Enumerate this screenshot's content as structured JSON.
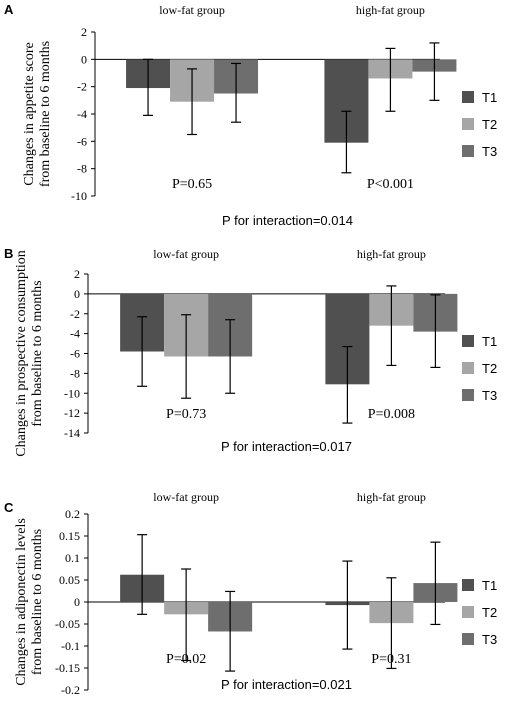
{
  "colors": {
    "T1": "#505050",
    "T2": "#a6a6a6",
    "T3": "#6e6e6e"
  },
  "chart_data": [
    {
      "panel": "A",
      "type": "bar",
      "ylabel_lines": [
        "Changes in appetite score",
        "from baseline to 6 months"
      ],
      "groups": [
        "low-fat group",
        "high-fat group"
      ],
      "ylim": [
        -10,
        2
      ],
      "yticks": [
        2,
        0,
        -2,
        -4,
        -6,
        -8,
        -10
      ],
      "ytick_labels": [
        "2",
        "0",
        "-2",
        "-4",
        "-6",
        "-8",
        "-10"
      ],
      "series": [
        {
          "name": "T1",
          "values": [
            -2.1,
            -6.1
          ],
          "err_low": [
            -4.1,
            -8.3
          ],
          "err_high": [
            0,
            -3.8
          ]
        },
        {
          "name": "T2",
          "values": [
            -3.1,
            -1.4
          ],
          "err_low": [
            -5.5,
            -3.8
          ],
          "err_high": [
            -0.7,
            0.8
          ]
        },
        {
          "name": "T3",
          "values": [
            -2.5,
            -0.9
          ],
          "err_low": [
            -4.6,
            -3.0
          ],
          "err_high": [
            -0.3,
            1.2
          ]
        }
      ],
      "p_values": [
        "P=0.65",
        "P<0.001"
      ],
      "interaction": "P for interaction=0.014"
    },
    {
      "panel": "B",
      "type": "bar",
      "ylabel_lines": [
        "Changes in prospective consumption",
        "from baseline to 6 months"
      ],
      "groups": [
        "low-fat group",
        "high-fat group"
      ],
      "ylim": [
        -14,
        2
      ],
      "yticks": [
        2,
        0,
        -2,
        -4,
        -6,
        -8,
        -10,
        -12,
        -14
      ],
      "ytick_labels": [
        "2",
        "0",
        "-2",
        "-4",
        "-6",
        "-8",
        "-10",
        "-12",
        "-14"
      ],
      "series": [
        {
          "name": "T1",
          "values": [
            -5.8,
            -9.1
          ],
          "err_low": [
            -9.3,
            -13.0
          ],
          "err_high": [
            -2.3,
            -5.3
          ]
        },
        {
          "name": "T2",
          "values": [
            -6.3,
            -3.2
          ],
          "err_low": [
            -10.5,
            -7.2
          ],
          "err_high": [
            -2.1,
            0.8
          ]
        },
        {
          "name": "T3",
          "values": [
            -6.3,
            -3.8
          ],
          "err_low": [
            -10.0,
            -7.4
          ],
          "err_high": [
            -2.6,
            -0.1
          ]
        }
      ],
      "p_values": [
        "P=0.73",
        "P=0.008"
      ],
      "interaction": "P for interaction=0.017"
    },
    {
      "panel": "C",
      "type": "bar",
      "ylabel_lines": [
        "Changes in adiponectin levels",
        "from baseline to 6 months"
      ],
      "groups": [
        "low-fat group",
        "high-fat group"
      ],
      "ylim": [
        -0.2,
        0.2
      ],
      "yticks": [
        0.2,
        0.15,
        0.1,
        0.05,
        0,
        -0.05,
        -0.1,
        -0.15,
        -0.2
      ],
      "ytick_labels": [
        "0.2",
        "0.15",
        "0.1",
        "0.05",
        "0",
        "-0.05",
        "-0.1",
        "-0.15",
        "-0.2"
      ],
      "series": [
        {
          "name": "T1",
          "values": [
            0.062,
            -0.007
          ],
          "err_low": [
            -0.028,
            -0.107
          ],
          "err_high": [
            0.153,
            0.093
          ]
        },
        {
          "name": "T2",
          "values": [
            -0.028,
            -0.048
          ],
          "err_low": [
            -0.133,
            -0.151
          ],
          "err_high": [
            0.075,
            0.055
          ]
        },
        {
          "name": "T3",
          "values": [
            -0.067,
            0.043
          ],
          "err_low": [
            -0.157,
            -0.051
          ],
          "err_high": [
            0.024,
            0.136
          ]
        }
      ],
      "p_values": [
        "P=0.02",
        "P=0.31"
      ],
      "interaction": "P for interaction=0.021"
    }
  ]
}
